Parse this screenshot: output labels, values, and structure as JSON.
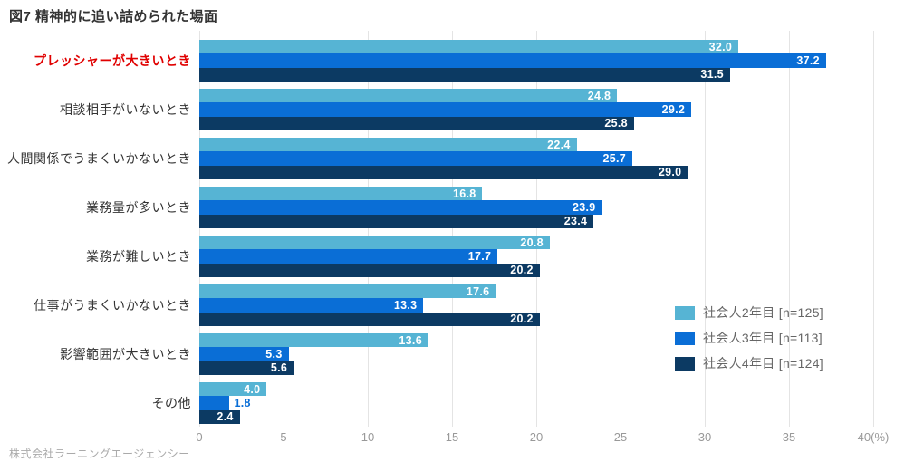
{
  "footer": {
    "source": "株式会社ラーニングエージェンシー"
  },
  "chart_data": {
    "type": "bar",
    "orientation": "horizontal",
    "title": "図7 精神的に追い詰められた場面",
    "categories": [
      "プレッシャーが大きいとき",
      "相談相手がいないとき",
      "人間関係でうまくいかないとき",
      "業務量が多いとき",
      "業務が難しいとき",
      "仕事がうまくいかないとき",
      "影響範囲が大きいとき",
      "その他"
    ],
    "highlighted_category_index": 0,
    "highlight_color": "#e00000",
    "series": [
      {
        "name": "社会人2年目 [n=125]",
        "color": "#56b4d4",
        "values": [
          32.0,
          24.8,
          22.4,
          16.8,
          20.8,
          17.6,
          13.6,
          4.0
        ]
      },
      {
        "name": "社会人3年目 [n=113]",
        "color": "#0a6ed6",
        "values": [
          37.2,
          29.2,
          25.7,
          23.9,
          17.7,
          13.3,
          5.3,
          1.8
        ]
      },
      {
        "name": "社会人4年目 [n=124]",
        "color": "#0c3a63",
        "values": [
          31.5,
          25.8,
          29.0,
          23.4,
          20.2,
          20.2,
          5.6,
          2.4
        ]
      }
    ],
    "xlim": [
      0,
      40
    ],
    "x_ticks": [
      0,
      5,
      10,
      15,
      20,
      25,
      30,
      35,
      40
    ],
    "x_tick_labels": [
      "0",
      "5",
      "10",
      "15",
      "20",
      "25",
      "30",
      "35",
      "40(%)"
    ],
    "grid": true,
    "value_label_color": "#ffffff",
    "legend_position": "right-middle"
  }
}
